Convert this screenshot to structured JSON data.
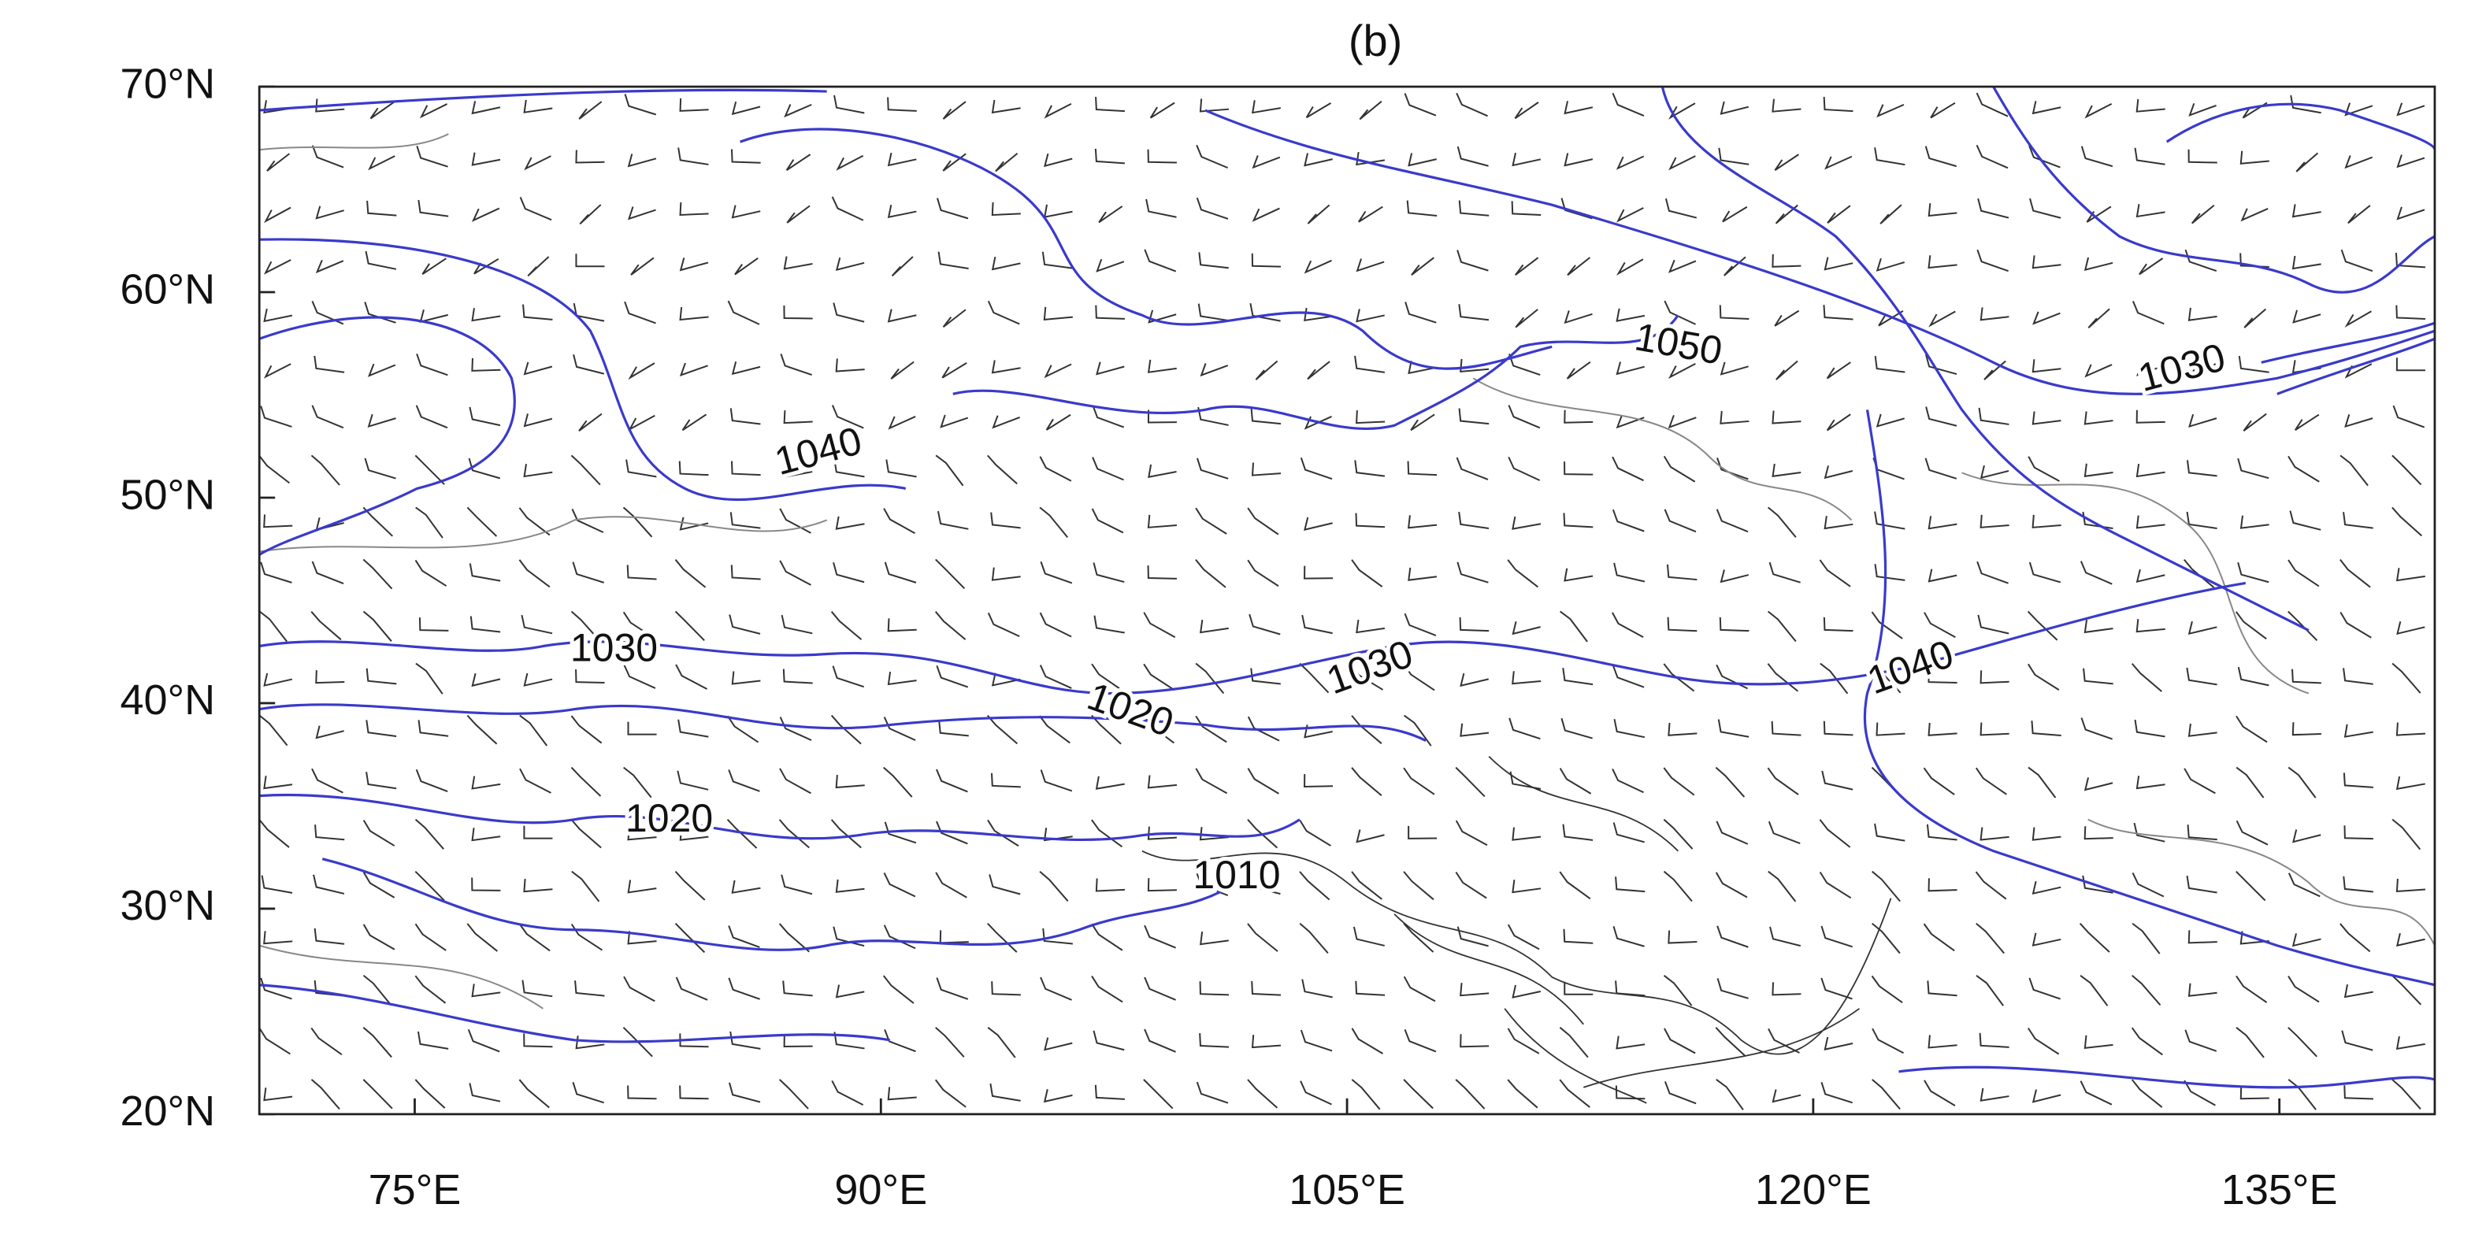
{
  "map": {
    "title": "(b)",
    "xlim": [
      70,
      140
    ],
    "ylim": [
      20,
      70
    ],
    "xticks": [
      {
        "value": 75,
        "label": "75°E"
      },
      {
        "value": 90,
        "label": "90°E"
      },
      {
        "value": 105,
        "label": "105°E"
      },
      {
        "value": 120,
        "label": "120°E"
      },
      {
        "value": 135,
        "label": "135°E"
      }
    ],
    "yticks": [
      {
        "value": 20,
        "label": "20°N"
      },
      {
        "value": 30,
        "label": "30°N"
      },
      {
        "value": 40,
        "label": "40°N"
      },
      {
        "value": 50,
        "label": "50°N"
      },
      {
        "value": 60,
        "label": "60°N"
      },
      {
        "value": 70,
        "label": "70°N"
      }
    ],
    "contour_labels": [
      1050,
      1030,
      1040,
      1030,
      1030,
      1020,
      1040,
      1020,
      1010
    ]
  }
}
